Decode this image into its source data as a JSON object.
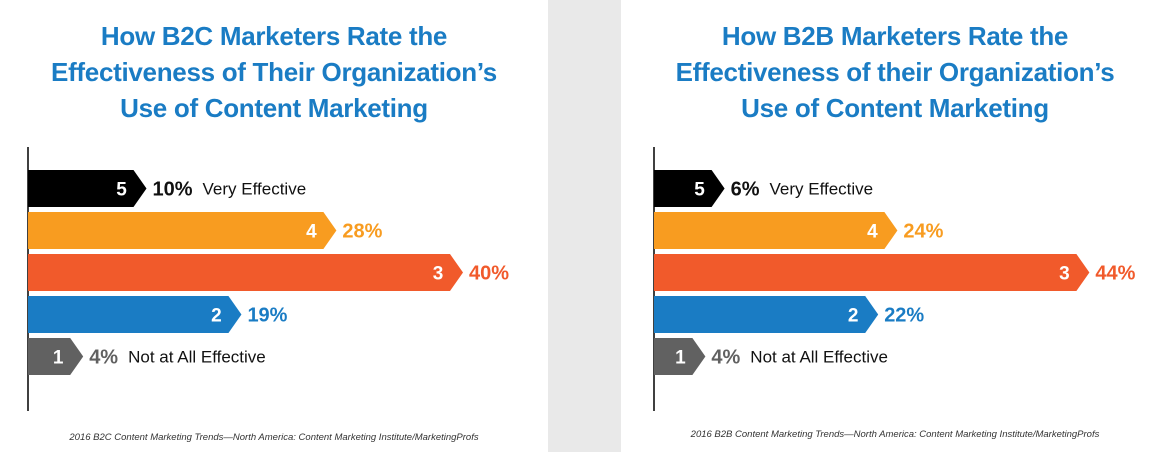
{
  "chart_data": [
    {
      "type": "bar",
      "orientation": "horizontal",
      "title_lines": [
        "How B2C Marketers Rate the",
        "Effectiveness of Their Organization’s",
        "Use of Content Marketing"
      ],
      "source": "2016 B2C Content Marketing Trends—North America: Content Marketing Institute/MarketingProfs",
      "bars": [
        {
          "rating": "5",
          "value": 10,
          "label": "10%",
          "category": "Very Effective",
          "color": "#000000",
          "label_color": "#111111"
        },
        {
          "rating": "4",
          "value": 28,
          "label": "28%",
          "category": "",
          "color": "#f89c20",
          "label_color": "#f89c20"
        },
        {
          "rating": "3",
          "value": 40,
          "label": "40%",
          "category": "",
          "color": "#f15a2b",
          "label_color": "#f15a2b"
        },
        {
          "rating": "2",
          "value": 19,
          "label": "19%",
          "category": "",
          "color": "#1a7cc4",
          "label_color": "#1a7cc4"
        },
        {
          "rating": "1",
          "value": 4,
          "label": "4%",
          "category": "Not at All Effective",
          "color": "#616161",
          "label_color": "#616161"
        }
      ]
    },
    {
      "type": "bar",
      "orientation": "horizontal",
      "title_lines": [
        "How B2B Marketers Rate the",
        "Effectiveness of their Organization’s",
        "Use of Content Marketing"
      ],
      "source": "2016 B2B Content Marketing Trends—North America: Content Marketing Institute/MarketingProfs",
      "bars": [
        {
          "rating": "5",
          "value": 6,
          "label": "6%",
          "category": "Very Effective",
          "color": "#000000",
          "label_color": "#111111"
        },
        {
          "rating": "4",
          "value": 24,
          "label": "24%",
          "category": "",
          "color": "#f89c20",
          "label_color": "#f89c20"
        },
        {
          "rating": "3",
          "value": 44,
          "label": "44%",
          "category": "",
          "color": "#f15a2b",
          "label_color": "#f15a2b"
        },
        {
          "rating": "2",
          "value": 22,
          "label": "22%",
          "category": "",
          "color": "#1a7cc4",
          "label_color": "#1a7cc4"
        },
        {
          "rating": "1",
          "value": 4,
          "label": "4%",
          "category": "Not at All Effective",
          "color": "#616161",
          "label_color": "#616161"
        }
      ]
    }
  ]
}
